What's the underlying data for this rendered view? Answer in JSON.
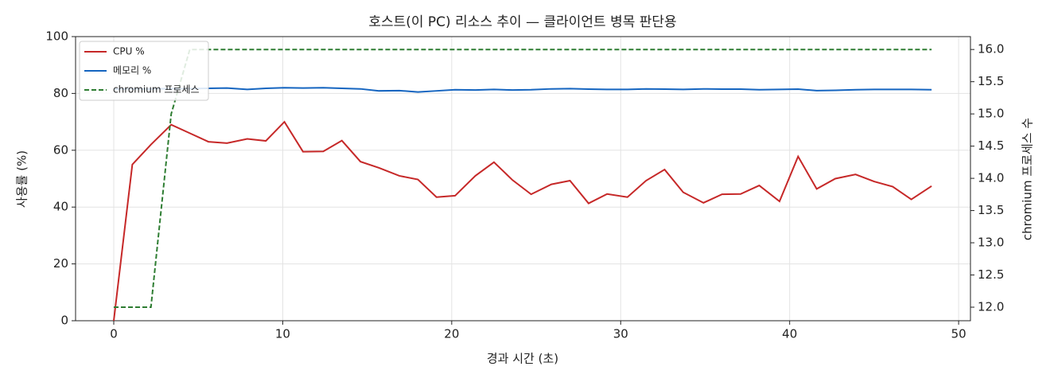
{
  "chart_data": {
    "type": "line",
    "title": "호스트(이 PC) 리소스 추이 — 클라이언트 병목 판단용",
    "x_label": "경과 시간 (초)",
    "y_label": "사용률 (%)",
    "y2_label": "chromium 프로세스 수",
    "x": [
      0,
      1.1,
      2.2,
      3.4,
      4.5,
      5.6,
      6.7,
      7.9,
      9.0,
      10.1,
      11.2,
      12.4,
      13.5,
      14.6,
      15.7,
      16.9,
      18.0,
      19.1,
      20.2,
      21.4,
      22.5,
      23.6,
      24.7,
      25.9,
      27.0,
      28.1,
      29.2,
      30.4,
      31.5,
      32.6,
      33.7,
      34.9,
      36.0,
      37.1,
      38.2,
      39.4,
      40.5,
      41.6,
      42.7,
      43.9,
      45.0,
      46.1,
      47.2,
      48.4
    ],
    "series": [
      {
        "name": "CPU %",
        "color": "#c62828",
        "linestyle": "solid",
        "values": [
          0,
          55,
          62,
          69,
          66,
          63,
          62.5,
          64,
          63.3,
          70,
          59.5,
          59.6,
          63.4,
          56,
          53.8,
          51,
          49.7,
          43.5,
          44,
          51,
          55.8,
          49.5,
          44.5,
          48,
          49.3,
          41.3,
          44.6,
          43.5,
          49.3,
          53.2,
          45.2,
          41.5,
          44.5,
          44.6,
          47.6,
          42,
          57.8,
          46.4,
          50,
          51.5,
          49,
          47.2,
          42.7,
          47.4
        ]
      },
      {
        "name": "메모리 %",
        "color": "#1565c0",
        "linestyle": "solid",
        "values": [
          81.5,
          81.6,
          81.6,
          81.7,
          81.7,
          81.8,
          81.9,
          81.4,
          81.8,
          82.0,
          81.9,
          82.0,
          81.8,
          81.6,
          80.9,
          81.0,
          80.5,
          80.9,
          81.3,
          81.2,
          81.4,
          81.2,
          81.3,
          81.6,
          81.7,
          81.5,
          81.4,
          81.4,
          81.6,
          81.5,
          81.4,
          81.6,
          81.5,
          81.5,
          81.3,
          81.4,
          81.5,
          81.0,
          81.1,
          81.3,
          81.4,
          81.4,
          81.4,
          81.3
        ]
      },
      {
        "name": "chromium 프로세스",
        "color": "#2e7d32",
        "linestyle": "dashed",
        "axis": "y2",
        "values": [
          12,
          12,
          12,
          15,
          16,
          16,
          16,
          16,
          16,
          16,
          16,
          16,
          16,
          16,
          16,
          16,
          16,
          16,
          16,
          16,
          16,
          16,
          16,
          16,
          16,
          16,
          16,
          16,
          16,
          16,
          16,
          16,
          16,
          16,
          16,
          16,
          16,
          16,
          16,
          16,
          16,
          16,
          16,
          16
        ]
      }
    ],
    "xlim": [
      -2.26,
      50.7
    ],
    "xticks": [
      0,
      10,
      20,
      30,
      40,
      50
    ],
    "ylim": [
      0,
      100
    ],
    "yticks": [
      0,
      20,
      40,
      60,
      80,
      100
    ],
    "y2lim": [
      11.79,
      16.2
    ],
    "y2ticks": [
      {
        "value": 12,
        "label": "12.0"
      },
      {
        "value": 12.5,
        "label": "12.5"
      },
      {
        "value": 13,
        "label": "13.0"
      },
      {
        "value": 13.5,
        "label": "13.5"
      },
      {
        "value": 14,
        "label": "14.0"
      },
      {
        "value": 14.5,
        "label": "14.5"
      },
      {
        "value": 15,
        "label": "15.0"
      },
      {
        "value": 15.5,
        "label": "15.5"
      },
      {
        "value": 16,
        "label": "16.0"
      }
    ],
    "grid": true,
    "legend": "upper-left"
  }
}
